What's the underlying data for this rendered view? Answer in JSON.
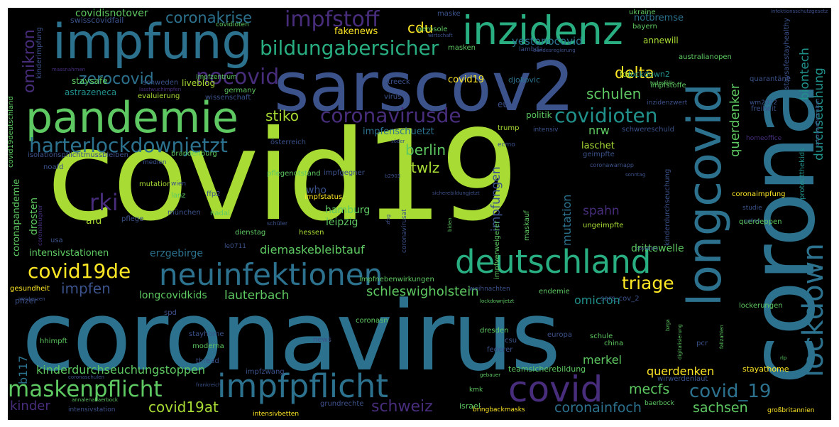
{
  "words": {
    "covid19": "covid19",
    "coronavirus": "coronavirus",
    "corona": "corona",
    "sarscov2": "sarscov2",
    "impfung": "impfung",
    "inzidenz": "inzidenz",
    "pandemie": "pandemie",
    "longcovid": "longcovid",
    "lockdown": "lockdown",
    "deutschland": "deutschland",
    "neuinfektionen": "neuinfektionen",
    "impfpflicht": "impfpflicht",
    "covid": "covid",
    "maskenpflicht": "maskenpflicht",
    "harterlockdownjetzt": "harterlockdownjetzt",
    "coronavirusde": "coronavirusde",
    "covidioten": "covidioten",
    "bildungabersicher": "bildungabersicher",
    "impfstoff": "impfstoff",
    "coronakrise": "coronakrise",
    "covid19de": "covid19de",
    "rki": "rki",
    "nocovid": "nocovid",
    "zerocovid": "zerocovid",
    "omikron": "omikron",
    "delta": "delta",
    "triage": "triage",
    "covid_19": "covid_19",
    "covid19at": "covid19at",
    "schweiz": "schweiz",
    "sachsen": "sachsen",
    "coronainfoch": "coronainfoch",
    "mecfs": "mecfs",
    "schleswigholstein": "schleswigholstein",
    "kinderdurchseuchungstoppen": "kinderdurchseuchungstoppen",
    "kinder": "kinder",
    "impfen": "impfen",
    "lauterbach": "lauterbach",
    "longcovidkids": "longcovidkids",
    "berlin": "berlin",
    "stiko": "stiko",
    "twlz": "twlz",
    "cdu": "cdu",
    "schulen": "schulen",
    "spahn": "spahn",
    "nrw": "nrw",
    "querdenker": "querdenker",
    "durchseuchung": "durchseuchung",
    "biontech": "biontech",
    "impfungen": "impfungen",
    "mutation": "mutation",
    "merkel": "merkel",
    "omicron": "omicron",
    "querdenken": "querdenken",
    "diemaskebleibtauf": "diemaskebleibtauf",
    "drittewelle": "drittewelle",
    "erzgebirge": "erzgebirge",
    "intensivstationen": "intensivstationen",
    "b117": "b117",
    "hamburg": "hamburg",
    "leipzig": "leipzig",
    "afd": "afd",
    "who": "who",
    "drosten": "drosten",
    "coronapandemie": "coronapandemie",
    "yestonocovid": "yestonocovid",
    "fakenews": "fakenews",
    "covidisnotover": "covidisnotover",
    "swisscovidfail": "swisscovidfail",
    "notbremse": "notbremse",
    "annewill": "annewill",
    "fdp": "fdp",
    "lockdown2": "lockdown2",
    "impfenschuetzt": "impfenschuetzt",
    "politik": "politik",
    "laschet": "laschet",
    "eu": "eu",
    "covid19_2": "covid​19",
    "liveblog": "liveblog",
    "staysafe": "staysafe",
    "astrazeneca": "astrazeneca",
    "evaluierung": "evaluierung",
    "djokovic": "djokovic",
    "aerosole": "aerosole",
    "masken": "masken",
    "maske": "maske",
    "ukraine": "ukraine",
    "bayern": "bayern",
    "australianopen": "australianopen",
    "quarantane": "quarantäne",
    "freiheit": "freiheit",
    "wm2022": "wm2022",
    "stayathome": "stayathome",
    "teamsicherebildung": "teamsicherebildung",
    "dresden": "dresden",
    "israel": "israel",
    "europa": "europa",
    "schule": "schule",
    "china": "china",
    "federer": "federer",
    "csu": "csu",
    "hessen": "hessen",
    "mutationen": "mutationen",
    "lanz": "lanz",
    "munchen": "münchen",
    "ffp2": "ffp2",
    "nadal": "nadal",
    "impfstatus": "impfstatus",
    "pflege": "pflege",
    "usa": "usa",
    "dienstag": "dienstag",
    "ungeimpfte": "ungeimpfte",
    "maskauf": "maskauf",
    "impfverweigerer": "impfverweigerer",
    "impfgegner": "impfgegner",
    "pflegenotstand": "pflegenotstand",
    "brandenburg": "brandenburg",
    "coronaimpfung": "coronaimpfung",
    "querdeppen": "querdeppen",
    "gesundheit": "gesundheit",
    "pfizer": "pfizer",
    "hhimpft": "hhimpft",
    "moderna": "moderna",
    "thread": "thread",
    "impfzwang": "impfzwang",
    "grundrechte": "grundrechte",
    "intensivbetten": "intensivbetten",
    "intensivstation": "intensivstation",
    "bringbackmasks": "bringbackmasks",
    "baerbock": "baerbock",
    "grossbritannien": "großbritannien",
    "kmk": "kmk",
    "lockerungen": "lockerungen",
    "wirwerdenlaut": "wirwerdenlaut",
    "endemie": "endemie",
    "sars_cov_2": "sars_cov_2",
    "impfnebenwirkungen": "impfnebenwirkungen",
    "weihnachten": "weihnachten",
    "news": "news",
    "coronasn": "coronasn",
    "stayhome": "stayhome",
    "schwereschuld": "schwereschuld",
    "homeoffice": "homeoffice",
    "trump": "trump",
    "intensiv": "intensiv",
    "ecmo": "ecmo",
    "geimpfte": "geimpfte",
    "wien": "wien",
    "noafd": "noafd",
    "medien": "medien",
    "impfzentrum": "impfzentrum",
    "schweden": "schweden",
    "germany": "germany",
    "wissenschaft": "wissenschaft",
    "streeck": "streeck",
    "virus": "virus",
    "impfstoffe": "impfstoffe",
    "inzidenzwert": "inzidenzwert",
    "covidioten2": "covidioten",
    "lambda": "lambda",
    "staysafestayhealthy": "staysafestayhealthy",
    "protectthekids": "protectthekids",
    "kinderdurchseuchung": "kinderdurchseuchung",
    "kinderimpfung": "kinderimpfung",
    "covid19deutschland": "covid19deutschland",
    "isolationspflicht": "isolationspflichtmussbleiben",
    "osterreich": "österreich",
    "coronavirusat": "coronavirusat",
    "le0711": "le0711",
    "studie": "studie",
    "coronawarnapp": "coronawarnapp",
    "schuler": "schüler",
    "infektionsschutzgesetz": "infektionsschutzgesetz",
    "wirtschaft": "wirtschaft",
    "bundesregierung": "bundesregierung",
    "massnahmen": "massnahmen",
    "lasstwuchimpfen": "lasstwuchimpfen",
    "todesfalle": "todesfälle",
    "schulenoffenhalten": "schulenoffenhalten",
    "soder": "söder",
    "sicherebildungjetzt": "sicherebildungjetzt",
    "b2903": "b2903",
    "sonntag": "sonntag",
    "polizei": "polizei",
    "spd": "spd",
    "inzidenzen": "inzidenzen",
    "lockdownjetzt": "lockdownjetzt",
    "bzga": "bzga",
    "digitalisierung": "digitalisierung",
    "fallzahlen": "fallzahlen",
    "pcr": "pcr",
    "rlp": "rlp",
    "gebauer": "gebauer",
    "frankreich": "frankreich",
    "annalenabaerbock": "annalenabaerbock",
    "coronaschulen": "coronaschulen",
    "coronaleugner": "coronaleugner",
    "zfsg": "zfsg",
    "biden": "biden",
    "covidiots": "covidiots"
  },
  "palette": {
    "background": "#000000",
    "yellow_green": "#a8db34",
    "teal": "#2c728e",
    "blue": "#3b528b",
    "green": "#5ec962",
    "purple": "#472d7b",
    "dark_purple": "#440154",
    "aqua": "#21918c",
    "sea": "#28ae80",
    "yellow": "#fde725"
  }
}
